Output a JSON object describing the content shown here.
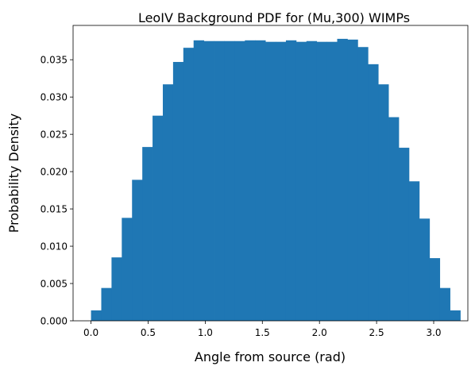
{
  "chart_data": {
    "type": "bar",
    "title": "LeoIV Background PDF for (Mu,300) WIMPs",
    "xlabel": "Angle from source (rad)",
    "ylabel": "Probability Density",
    "xlim": [
      -0.157,
      3.299
    ],
    "ylim": [
      0,
      0.0396
    ],
    "xticks": [
      "0.0",
      "0.5",
      "1.0",
      "1.5",
      "2.0",
      "2.5",
      "3.0"
    ],
    "yticks": [
      "0.000",
      "0.005",
      "0.010",
      "0.015",
      "0.020",
      "0.025",
      "0.030",
      "0.035"
    ],
    "bar_color": "#1f77b4",
    "bin_width": 0.0898,
    "bins_start": 0.0,
    "values": [
      0.0014,
      0.0044,
      0.0085,
      0.0138,
      0.0189,
      0.0233,
      0.0275,
      0.0317,
      0.0347,
      0.0366,
      0.0376,
      0.0375,
      0.0375,
      0.0375,
      0.0375,
      0.0376,
      0.0376,
      0.0374,
      0.0374,
      0.0376,
      0.0374,
      0.0375,
      0.0374,
      0.0374,
      0.0378,
      0.0377,
      0.0367,
      0.0344,
      0.0317,
      0.0273,
      0.0232,
      0.0187,
      0.0137,
      0.0084,
      0.0044,
      0.0014
    ]
  }
}
